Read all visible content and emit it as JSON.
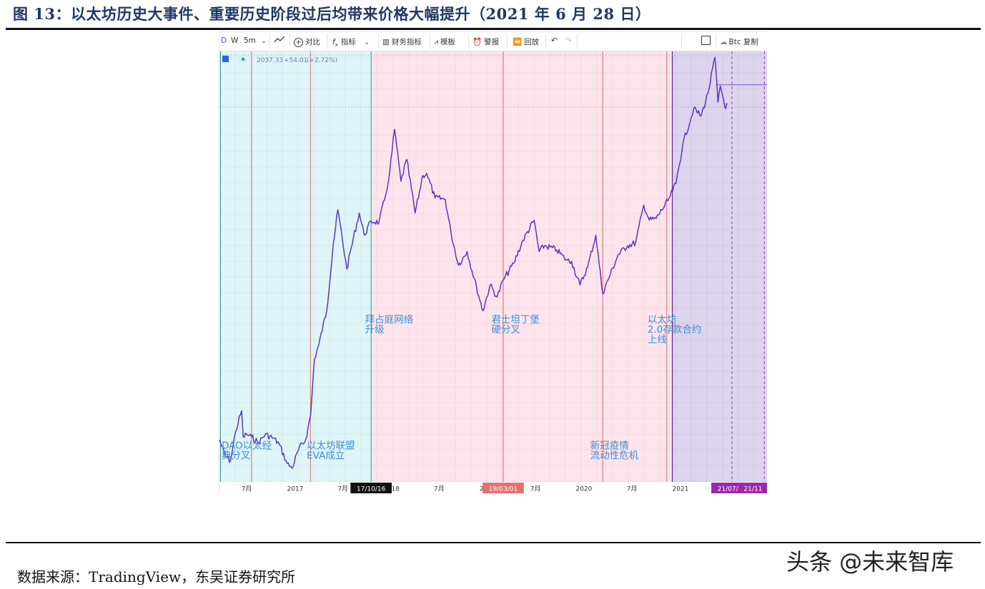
{
  "figure": {
    "title": "图 13：以太坊历史大事件、重要历史阶段过后均带来价格大幅提升（2021 年 6 月 28 日）",
    "source": "数据来源：TradingView，东吴证券研究所",
    "watermark": "头条 @未来智库"
  },
  "toolbar": {
    "items": [
      {
        "label": "D",
        "icon": ""
      },
      {
        "label": "W",
        "icon": ""
      },
      {
        "label": "5m",
        "icon": "chevron-down-icon"
      },
      {
        "label": "",
        "icon": "line-style-icon"
      },
      {
        "label": "对比",
        "icon": "plus-circle-icon"
      },
      {
        "label": "指标",
        "icon": "fx-icon"
      },
      {
        "label": "财务指标",
        "icon": "bar-chart-icon"
      },
      {
        "label": "模板",
        "icon": "template-icon"
      },
      {
        "label": "警报",
        "icon": "alarm-icon"
      },
      {
        "label": "回放",
        "icon": "rewind-icon"
      },
      {
        "label": "",
        "icon": "undo-icon"
      },
      {
        "label": "",
        "icon": "redo-icon"
      },
      {
        "label": "",
        "icon": "fullscreen-icon"
      },
      {
        "label": "Btc 复制",
        "icon": "cloud-icon"
      }
    ]
  },
  "legend": {
    "value": "2037.33",
    "change": "+54.01",
    "change_pct": "(+2.72%)"
  },
  "colors": {
    "price_line": "#5b36b8",
    "phase_1": "#dff6f8",
    "phase_2": "#fde4ec",
    "phase_3": "#ddd4ee",
    "event_line": "#e06a6a",
    "annotation_text": "#3b8fd6",
    "axis_tag_1": "#111111",
    "axis_tag_2": "#e86f6f",
    "axis_tag_3": "#9c27b0"
  },
  "chart_data": {
    "type": "line",
    "x_unit": "date",
    "y_scale": "log",
    "x_range": [
      "2016-03-20",
      "2021-11-25"
    ],
    "y_range": [
      6,
      4600
    ],
    "grid": true,
    "series": [
      {
        "values": [
          [
            "2016-03-20",
            11.5
          ],
          [
            "2016-04-10",
            9.0
          ],
          [
            "2016-05-01",
            8.3
          ],
          [
            "2016-05-20",
            13.0
          ],
          [
            "2016-06-12",
            18.0
          ],
          [
            "2016-06-18",
            12.0
          ],
          [
            "2016-07-01",
            12.5
          ],
          [
            "2016-07-20",
            12.0
          ],
          [
            "2016-08-15",
            11.0
          ],
          [
            "2016-09-10",
            12.5
          ],
          [
            "2016-10-10",
            11.8
          ],
          [
            "2016-11-01",
            10.8
          ],
          [
            "2016-12-01",
            8.0
          ],
          [
            "2016-12-20",
            7.4
          ],
          [
            "2017-01-15",
            10.0
          ],
          [
            "2017-02-10",
            11.5
          ],
          [
            "2017-03-01",
            17.0
          ],
          [
            "2017-03-15",
            40.0
          ],
          [
            "2017-04-01",
            50.0
          ],
          [
            "2017-05-01",
            85.0
          ],
          [
            "2017-05-25",
            230.0
          ],
          [
            "2017-06-12",
            400.0
          ],
          [
            "2017-07-16",
            160.0
          ],
          [
            "2017-08-01",
            220.0
          ],
          [
            "2017-09-01",
            380.0
          ],
          [
            "2017-09-20",
            270.0
          ],
          [
            "2017-10-16",
            335.0
          ],
          [
            "2017-11-15",
            330.0
          ],
          [
            "2017-12-10",
            500.0
          ],
          [
            "2017-12-25",
            700.0
          ],
          [
            "2018-01-13",
            1380.0
          ],
          [
            "2018-02-06",
            620.0
          ],
          [
            "2018-02-28",
            870.0
          ],
          [
            "2018-04-01",
            380.0
          ],
          [
            "2018-04-30",
            680.0
          ],
          [
            "2018-05-15",
            700.0
          ],
          [
            "2018-06-15",
            480.0
          ],
          [
            "2018-07-24",
            470.0
          ],
          [
            "2018-08-15",
            280.0
          ],
          [
            "2018-09-12",
            170.0
          ],
          [
            "2018-10-15",
            210.0
          ],
          [
            "2018-11-20",
            120.0
          ],
          [
            "2018-12-14",
            84.0
          ],
          [
            "2019-01-10",
            125.0
          ],
          [
            "2019-02-06",
            104.0
          ],
          [
            "2019-03-01",
            135.0
          ],
          [
            "2019-04-10",
            175.0
          ],
          [
            "2019-05-15",
            250.0
          ],
          [
            "2019-06-26",
            340.0
          ],
          [
            "2019-07-15",
            210.0
          ],
          [
            "2019-08-05",
            230.0
          ],
          [
            "2019-09-20",
            215.0
          ],
          [
            "2019-10-25",
            185.0
          ],
          [
            "2019-11-15",
            180.0
          ],
          [
            "2019-12-17",
            125.0
          ],
          [
            "2020-01-15",
            165.0
          ],
          [
            "2020-02-15",
            270.0
          ],
          [
            "2020-03-12",
            110.0
          ],
          [
            "2020-04-01",
            135.0
          ],
          [
            "2020-05-10",
            200.0
          ],
          [
            "2020-06-15",
            230.0
          ],
          [
            "2020-07-15",
            240.0
          ],
          [
            "2020-08-15",
            430.0
          ],
          [
            "2020-09-05",
            340.0
          ],
          [
            "2020-10-01",
            350.0
          ],
          [
            "2020-11-15",
            460.0
          ],
          [
            "2020-12-15",
            600.0
          ],
          [
            "2021-01-10",
            1100.0
          ],
          [
            "2021-02-20",
            1900.0
          ],
          [
            "2021-03-20",
            1700.0
          ],
          [
            "2021-04-15",
            2400.0
          ],
          [
            "2021-05-12",
            4200.0
          ],
          [
            "2021-05-23",
            2100.0
          ],
          [
            "2021-06-01",
            2700.0
          ],
          [
            "2021-06-22",
            1900.0
          ],
          [
            "2021-06-28",
            2037.33
          ]
        ]
      }
    ],
    "reference_levels": [
      {
        "value": 4350,
        "style": "dotted"
      },
      {
        "value": 2750,
        "style": "solid"
      },
      {
        "value": 1950,
        "style": "dotted"
      }
    ],
    "phases": [
      {
        "from": "2016-03-20",
        "to": "2017-10-16",
        "color": "phase_1"
      },
      {
        "from": "2017-10-16",
        "to": "2020-12-01",
        "color": "phase_2"
      },
      {
        "from": "2020-12-01",
        "to": "2021-11-25",
        "color": "phase_3"
      }
    ],
    "event_lines": [
      "2016-07-20",
      "2017-02-28",
      "2019-03-01",
      "2020-03-12",
      "2020-11-10"
    ],
    "future_lines": [
      "2021-07-15",
      "2021-11-15"
    ],
    "x_tick_labels": [
      {
        "date": "2016-07-01",
        "label": "7月"
      },
      {
        "date": "2017-01-01",
        "label": "2017"
      },
      {
        "date": "2017-07-01",
        "label": "7月"
      },
      {
        "date": "2018-01-01",
        "label": "2018"
      },
      {
        "date": "2018-07-01",
        "label": "7月"
      },
      {
        "date": "2019-01-01",
        "label": "2019"
      },
      {
        "date": "2019-07-01",
        "label": "7月"
      },
      {
        "date": "2020-01-01",
        "label": "2020"
      },
      {
        "date": "2020-07-01",
        "label": "7月"
      },
      {
        "date": "2021-01-01",
        "label": "2021"
      }
    ],
    "x_axis_tags": [
      {
        "date": "2017-10-16",
        "label": "17/10/16",
        "color": "axis_tag_1"
      },
      {
        "date": "2019-03-01",
        "label": "19/03/01",
        "color": "axis_tag_2"
      },
      {
        "date": "2021-07-15",
        "label": "21/07/15",
        "color": "axis_tag_3"
      },
      {
        "date": "2021-11-15",
        "label": "21/11",
        "color": "axis_tag_3"
      }
    ],
    "annotations": [
      {
        "date": "2016-03-28",
        "price": 10.0,
        "lines": [
          "DAO以太经",
          "典分叉"
        ]
      },
      {
        "date": "2017-02-14",
        "price": 10.0,
        "lines": [
          "以太坊联盟",
          "EVA成立"
        ]
      },
      {
        "date": "2017-09-23",
        "price": 70.0,
        "lines": [
          "拜占庭网络",
          "升级"
        ]
      },
      {
        "date": "2019-01-15",
        "price": 70.0,
        "lines": [
          "君士坦丁堡",
          "硬分叉"
        ]
      },
      {
        "date": "2020-01-25",
        "price": 10.0,
        "lines": [
          "新冠疫情",
          "流动性危机"
        ]
      },
      {
        "date": "2020-08-29",
        "price": 70.0,
        "lines": [
          "以太坊",
          "2.0存款合约",
          "上线"
        ]
      }
    ]
  }
}
